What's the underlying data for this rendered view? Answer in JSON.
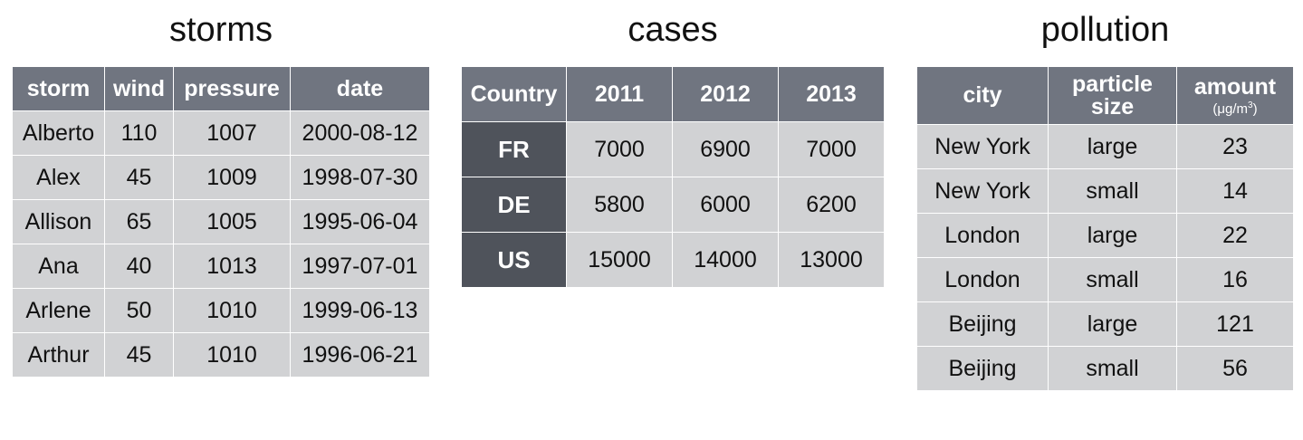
{
  "storms": {
    "title": "storms",
    "headers": [
      "storm",
      "wind",
      "pressure",
      "date"
    ],
    "rows": [
      [
        "Alberto",
        "110",
        "1007",
        "2000-08-12"
      ],
      [
        "Alex",
        "45",
        "1009",
        "1998-07-30"
      ],
      [
        "Allison",
        "65",
        "1005",
        "1995-06-04"
      ],
      [
        "Ana",
        "40",
        "1013",
        "1997-07-01"
      ],
      [
        "Arlene",
        "50",
        "1010",
        "1999-06-13"
      ],
      [
        "Arthur",
        "45",
        "1010",
        "1996-06-21"
      ]
    ]
  },
  "cases": {
    "title": "cases",
    "headers": [
      "Country",
      "2011",
      "2012",
      "2013"
    ],
    "rows": [
      [
        "FR",
        "7000",
        "6900",
        "7000"
      ],
      [
        "DE",
        "5800",
        "6000",
        "6200"
      ],
      [
        "US",
        "15000",
        "14000",
        "13000"
      ]
    ]
  },
  "pollution": {
    "title": "pollution",
    "headers": [
      "city",
      "particle size",
      "amount"
    ],
    "amount_unit_prefix": "(μg/m",
    "amount_unit_exp": "3",
    "amount_unit_suffix": ")",
    "rows": [
      [
        "New York",
        "large",
        "23"
      ],
      [
        "New York",
        "small",
        "14"
      ],
      [
        "London",
        "large",
        "22"
      ],
      [
        "London",
        "small",
        "16"
      ],
      [
        "Beijing",
        "large",
        "121"
      ],
      [
        "Beijing",
        "small",
        "56"
      ]
    ]
  }
}
